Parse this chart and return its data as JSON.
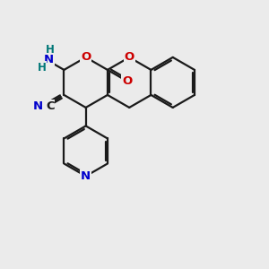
{
  "bg_color": "#ebebeb",
  "bond_color": "#1a1a1a",
  "lw": 1.6,
  "b": 0.88,
  "colors": {
    "O": "#cc0000",
    "N_blue": "#0000cc",
    "N_teal": "#007777",
    "C": "#1a1a1a"
  },
  "xlim": [
    -2.5,
    5.5
  ],
  "ylim": [
    -4.2,
    4.5
  ]
}
